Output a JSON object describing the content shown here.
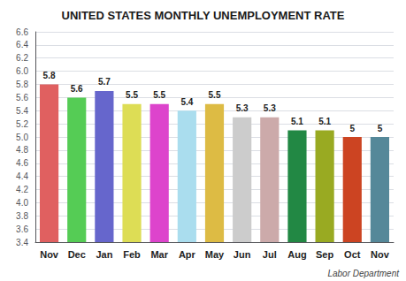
{
  "chart_data": {
    "type": "bar",
    "title": "UNITED STATES MONTHLY UNEMPLOYMENT RATE",
    "categories": [
      "Nov",
      "Dec",
      "Jan",
      "Feb",
      "Mar",
      "Apr",
      "May",
      "Jun",
      "Jul",
      "Aug",
      "Sep",
      "Oct",
      "Nov"
    ],
    "values": [
      5.8,
      5.6,
      5.7,
      5.5,
      5.5,
      5.4,
      5.5,
      5.3,
      5.3,
      5.1,
      5.1,
      5.0,
      5.0
    ],
    "colors": [
      "#e06060",
      "#55cc55",
      "#6666cc",
      "#dddd55",
      "#dd44cc",
      "#aaddee",
      "#ddbb44",
      "#cccccc",
      "#ccaaaa",
      "#228844",
      "#99aa22",
      "#cc4422",
      "#558899"
    ],
    "ylim": [
      3.4,
      6.6
    ],
    "yticks": [
      3.4,
      3.6,
      3.8,
      {
        "value": 4.0,
        "label": "4.0"
      },
      4.2,
      4.4,
      4.6,
      4.8,
      {
        "value": 5.0,
        "label": "5.0"
      },
      5.2,
      5.4,
      5.6,
      5.8,
      {
        "value": 6.0,
        "label": "6.0"
      },
      6.2,
      6.4,
      6.6
    ],
    "grid": true,
    "data_labels": true,
    "annotations": [
      "Labor Department"
    ]
  }
}
